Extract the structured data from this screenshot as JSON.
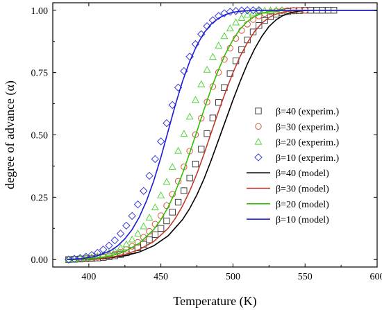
{
  "chart_data": {
    "type": "scatter",
    "title": "",
    "xlabel": "Temperature (K)",
    "ylabel": "degree of advance (α)",
    "xlim": [
      375,
      600
    ],
    "ylim": [
      -0.03,
      1.03
    ],
    "xticks": [
      400,
      450,
      500,
      550,
      600
    ],
    "yticks": [
      0.0,
      0.25,
      0.5,
      0.75,
      1.0
    ],
    "xtick_labels": [
      "400",
      "450",
      "500",
      "550",
      "600"
    ],
    "ytick_labels": [
      "0.00",
      "0.25",
      "0.50",
      "0.75",
      "1.00"
    ],
    "grid": false,
    "legend_position": "right",
    "series": [
      {
        "name": "β=40 (experim.)",
        "kind": "markers",
        "marker": "square",
        "color": "#404040",
        "x": [
          386,
          390,
          394,
          398,
          402,
          406,
          410,
          414,
          418,
          422,
          426,
          430,
          434,
          438,
          442,
          446,
          450,
          454,
          458,
          462,
          466,
          470,
          474,
          478,
          482,
          486,
          490,
          494,
          498,
          502,
          506,
          510,
          514,
          518,
          522,
          526,
          530,
          534,
          538,
          542,
          546,
          550,
          554,
          558,
          562,
          566,
          570
        ],
        "y": [
          0.0,
          0.001,
          0.002,
          0.003,
          0.004,
          0.006,
          0.008,
          0.011,
          0.015,
          0.02,
          0.027,
          0.036,
          0.047,
          0.061,
          0.079,
          0.1,
          0.125,
          0.155,
          0.19,
          0.23,
          0.276,
          0.327,
          0.383,
          0.443,
          0.505,
          0.568,
          0.63,
          0.69,
          0.746,
          0.797,
          0.842,
          0.881,
          0.913,
          0.939,
          0.959,
          0.974,
          0.984,
          0.991,
          0.995,
          0.998,
          0.999,
          1.0,
          1.0,
          1.0,
          1.0,
          1.0,
          1.0
        ]
      },
      {
        "name": "β=30 (experim.)",
        "kind": "markers",
        "marker": "circle",
        "color": "#d9543c",
        "x": [
          386,
          390,
          394,
          398,
          402,
          406,
          410,
          414,
          418,
          422,
          426,
          430,
          434,
          438,
          442,
          446,
          450,
          454,
          458,
          462,
          466,
          470,
          474,
          478,
          482,
          486,
          490,
          494,
          498,
          502,
          506,
          510,
          514,
          518,
          522,
          526,
          530,
          534,
          538,
          542,
          546,
          550
        ],
        "y": [
          0.0,
          0.001,
          0.003,
          0.004,
          0.006,
          0.009,
          0.012,
          0.016,
          0.022,
          0.03,
          0.04,
          0.053,
          0.069,
          0.089,
          0.113,
          0.142,
          0.176,
          0.216,
          0.262,
          0.314,
          0.372,
          0.435,
          0.501,
          0.567,
          0.632,
          0.694,
          0.751,
          0.803,
          0.848,
          0.887,
          0.919,
          0.944,
          0.963,
          0.977,
          0.987,
          0.993,
          0.996,
          0.998,
          0.999,
          1.0,
          1.0,
          1.0
        ]
      },
      {
        "name": "β=20 (experim.)",
        "kind": "markers",
        "marker": "triangle",
        "color": "#55d43c",
        "x": [
          386,
          390,
          394,
          398,
          402,
          406,
          410,
          414,
          418,
          422,
          426,
          430,
          434,
          438,
          442,
          446,
          450,
          454,
          458,
          462,
          466,
          470,
          474,
          478,
          482,
          486,
          490,
          494,
          498,
          502,
          506,
          510,
          514,
          518,
          522,
          526,
          530,
          534
        ],
        "y": [
          0.0,
          0.002,
          0.004,
          0.006,
          0.009,
          0.013,
          0.018,
          0.025,
          0.034,
          0.046,
          0.061,
          0.08,
          0.104,
          0.133,
          0.168,
          0.209,
          0.257,
          0.311,
          0.371,
          0.436,
          0.504,
          0.573,
          0.64,
          0.703,
          0.761,
          0.813,
          0.858,
          0.896,
          0.927,
          0.951,
          0.969,
          0.982,
          0.99,
          0.995,
          0.998,
          0.999,
          1.0,
          1.0
        ]
      },
      {
        "name": "β=10 (experim.)",
        "kind": "markers",
        "marker": "diamond",
        "color": "#3c3cd4",
        "x": [
          386,
          390,
          394,
          398,
          402,
          406,
          410,
          414,
          418,
          422,
          426,
          430,
          434,
          438,
          442,
          446,
          450,
          454,
          458,
          462,
          466,
          470,
          474,
          478,
          482,
          486,
          490,
          494,
          498,
          502,
          506,
          510,
          514,
          518
        ],
        "y": [
          0.0,
          0.003,
          0.006,
          0.011,
          0.018,
          0.027,
          0.04,
          0.056,
          0.077,
          0.104,
          0.136,
          0.175,
          0.221,
          0.275,
          0.336,
          0.403,
          0.474,
          0.547,
          0.62,
          0.69,
          0.756,
          0.814,
          0.864,
          0.904,
          0.936,
          0.96,
          0.977,
          0.988,
          0.994,
          0.997,
          0.999,
          1.0,
          1.0,
          1.0
        ]
      },
      {
        "name": "β=40 (model)",
        "kind": "line",
        "color": "#000000",
        "x": [
          385,
          395,
          405,
          415,
          425,
          435,
          445,
          455,
          465,
          470,
          475,
          480,
          485,
          490,
          495,
          500,
          505,
          510,
          515,
          520,
          525,
          530,
          535,
          540,
          545,
          550,
          555,
          560,
          570,
          580,
          600
        ],
        "y": [
          0.0,
          0.001,
          0.003,
          0.007,
          0.015,
          0.03,
          0.055,
          0.095,
          0.16,
          0.205,
          0.26,
          0.325,
          0.4,
          0.48,
          0.56,
          0.64,
          0.715,
          0.785,
          0.845,
          0.895,
          0.935,
          0.962,
          0.98,
          0.99,
          0.996,
          0.999,
          1.0,
          1.0,
          1.0,
          1.0,
          1.0
        ]
      },
      {
        "name": "β=30 (model)",
        "kind": "line",
        "color": "#c0392b",
        "x": [
          385,
          395,
          405,
          415,
          425,
          435,
          445,
          455,
          460,
          465,
          470,
          475,
          480,
          485,
          490,
          495,
          500,
          505,
          510,
          515,
          520,
          525,
          530,
          535,
          540,
          545,
          550,
          560,
          580,
          600
        ],
        "y": [
          0.0,
          0.001,
          0.004,
          0.009,
          0.02,
          0.04,
          0.072,
          0.125,
          0.165,
          0.215,
          0.275,
          0.345,
          0.425,
          0.51,
          0.595,
          0.675,
          0.75,
          0.815,
          0.87,
          0.915,
          0.948,
          0.971,
          0.985,
          0.993,
          0.997,
          0.999,
          1.0,
          1.0,
          1.0,
          1.0
        ]
      },
      {
        "name": "β=20 (model)",
        "kind": "line",
        "color": "#2fbf00",
        "x": [
          385,
          395,
          405,
          415,
          425,
          435,
          445,
          450,
          455,
          460,
          465,
          470,
          475,
          480,
          485,
          490,
          495,
          500,
          505,
          510,
          515,
          520,
          525,
          530,
          540,
          550,
          570,
          600
        ],
        "y": [
          0.0,
          0.002,
          0.006,
          0.014,
          0.032,
          0.065,
          0.12,
          0.16,
          0.21,
          0.272,
          0.345,
          0.428,
          0.515,
          0.603,
          0.687,
          0.762,
          0.828,
          0.882,
          0.925,
          0.955,
          0.975,
          0.988,
          0.995,
          0.998,
          1.0,
          1.0,
          1.0,
          1.0
        ]
      },
      {
        "name": "β=10 (model)",
        "kind": "line",
        "color": "#1a1ad4",
        "x": [
          385,
          395,
          405,
          415,
          420,
          425,
          430,
          435,
          440,
          445,
          450,
          455,
          460,
          465,
          470,
          475,
          480,
          485,
          490,
          495,
          500,
          505,
          510,
          520,
          530,
          550,
          600
        ],
        "y": [
          0.0,
          0.004,
          0.013,
          0.035,
          0.055,
          0.083,
          0.12,
          0.17,
          0.235,
          0.315,
          0.41,
          0.515,
          0.62,
          0.715,
          0.795,
          0.86,
          0.91,
          0.945,
          0.968,
          0.983,
          0.992,
          0.996,
          0.998,
          1.0,
          1.0,
          1.0,
          1.0
        ]
      }
    ]
  }
}
